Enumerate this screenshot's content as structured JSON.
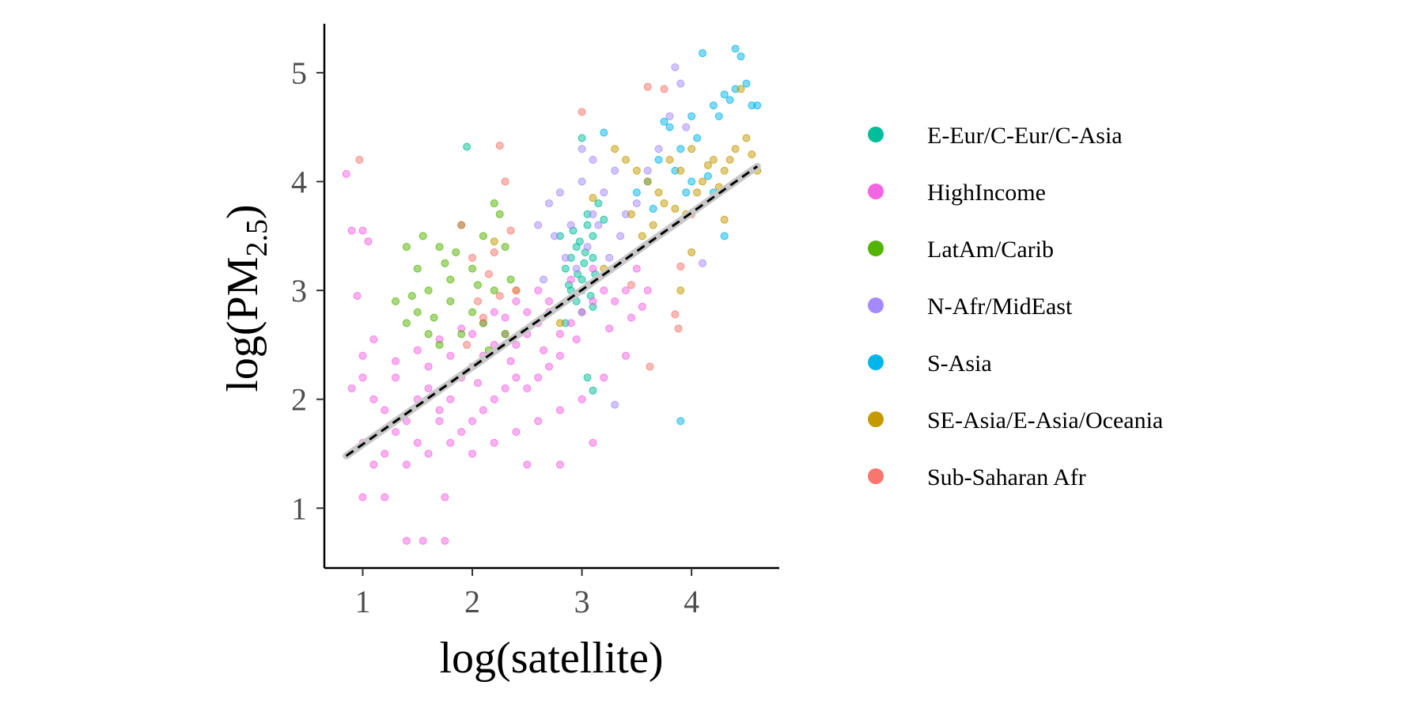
{
  "chart_data": {
    "type": "scatter",
    "title": "",
    "xlabel": "log(satellite)",
    "ylabel_parts": {
      "prefix": "log(",
      "main": "PM",
      "sub": "2.5",
      "suffix": ")"
    },
    "xlim": [
      0.65,
      4.8
    ],
    "ylim": [
      0.45,
      5.45
    ],
    "x_ticks": [
      1,
      2,
      3,
      4
    ],
    "y_ticks": [
      1,
      2,
      3,
      4,
      5
    ],
    "grid": false,
    "legend_position": "right",
    "fit_line": {
      "style": "dashed",
      "color": "#000000",
      "x": [
        0.85,
        4.6
      ],
      "y": [
        1.48,
        4.14
      ]
    },
    "series": [
      {
        "name": "E-Eur/C-Eur/C-Asia",
        "color": "#00BE9A",
        "points": [
          [
            2.85,
            3.2
          ],
          [
            2.9,
            3.0
          ],
          [
            2.95,
            3.4
          ],
          [
            3.0,
            3.1
          ],
          [
            3.05,
            3.6
          ],
          [
            3.1,
            3.3
          ],
          [
            3.0,
            2.8
          ],
          [
            2.95,
            2.9
          ],
          [
            3.1,
            3.5
          ],
          [
            3.05,
            3.7
          ],
          [
            2.88,
            3.05
          ],
          [
            3.02,
            3.25
          ],
          [
            3.08,
            2.95
          ],
          [
            2.92,
            3.55
          ],
          [
            3.12,
            3.15
          ],
          [
            2.98,
            3.45
          ],
          [
            3.15,
            3.8
          ],
          [
            2.85,
            2.7
          ],
          [
            3.0,
            3.0
          ],
          [
            3.03,
            3.35
          ],
          [
            2.96,
            3.15
          ],
          [
            3.06,
            3.05
          ],
          [
            2.9,
            3.3
          ],
          [
            3.1,
            2.85
          ],
          [
            1.95,
            4.32
          ],
          [
            3.0,
            4.4
          ],
          [
            3.05,
            2.2
          ],
          [
            3.1,
            2.08
          ],
          [
            3.2,
            3.65
          ],
          [
            2.8,
            3.5
          ]
        ]
      },
      {
        "name": "HighIncome",
        "color": "#F564E3",
        "points": [
          [
            0.9,
            2.1
          ],
          [
            1.0,
            2.2
          ],
          [
            1.1,
            2.0
          ],
          [
            1.2,
            1.9
          ],
          [
            1.3,
            2.2
          ],
          [
            1.4,
            1.8
          ],
          [
            1.5,
            2.0
          ],
          [
            1.6,
            2.1
          ],
          [
            1.7,
            1.9
          ],
          [
            1.8,
            2.0
          ],
          [
            1.9,
            2.2
          ],
          [
            2.0,
            2.3
          ],
          [
            2.1,
            2.4
          ],
          [
            2.2,
            2.5
          ],
          [
            2.3,
            2.6
          ],
          [
            2.4,
            2.5
          ],
          [
            2.5,
            2.6
          ],
          [
            2.6,
            2.7
          ],
          [
            2.7,
            2.8
          ],
          [
            2.8,
            2.6
          ],
          [
            2.9,
            2.7
          ],
          [
            3.0,
            2.8
          ],
          [
            3.1,
            2.9
          ],
          [
            3.2,
            3.0
          ],
          [
            3.3,
            2.9
          ],
          [
            3.4,
            3.0
          ],
          [
            3.5,
            3.2
          ],
          [
            3.6,
            3.0
          ],
          [
            1.0,
            1.6
          ],
          [
            1.1,
            1.4
          ],
          [
            1.2,
            1.5
          ],
          [
            1.3,
            1.7
          ],
          [
            1.4,
            1.4
          ],
          [
            1.5,
            1.6
          ],
          [
            1.6,
            1.5
          ],
          [
            1.7,
            1.8
          ],
          [
            1.8,
            1.6
          ],
          [
            1.9,
            1.7
          ],
          [
            2.0,
            1.8
          ],
          [
            2.1,
            1.9
          ],
          [
            2.2,
            2.0
          ],
          [
            2.3,
            2.1
          ],
          [
            2.4,
            2.2
          ],
          [
            2.5,
            2.1
          ],
          [
            2.6,
            2.2
          ],
          [
            2.7,
            2.3
          ],
          [
            2.8,
            2.4
          ],
          [
            2.0,
            2.6
          ],
          [
            2.2,
            2.8
          ],
          [
            2.4,
            2.9
          ],
          [
            2.6,
            3.0
          ],
          [
            1.0,
            1.1
          ],
          [
            1.2,
            1.1
          ],
          [
            1.4,
            0.7
          ],
          [
            1.55,
            0.7
          ],
          [
            1.75,
            0.7
          ],
          [
            1.75,
            1.1
          ],
          [
            0.9,
            3.55
          ],
          [
            1.0,
            3.55
          ],
          [
            0.85,
            4.07
          ],
          [
            1.05,
            3.45
          ],
          [
            0.95,
            2.95
          ],
          [
            1.0,
            2.4
          ],
          [
            1.1,
            2.55
          ],
          [
            1.3,
            2.35
          ],
          [
            1.5,
            2.45
          ],
          [
            1.7,
            2.55
          ],
          [
            1.9,
            2.65
          ],
          [
            2.1,
            2.7
          ],
          [
            2.3,
            2.75
          ],
          [
            2.5,
            2.8
          ],
          [
            2.7,
            2.9
          ],
          [
            2.9,
            3.1
          ],
          [
            3.1,
            3.2
          ],
          [
            2.0,
            1.5
          ],
          [
            2.2,
            1.6
          ],
          [
            2.4,
            1.7
          ],
          [
            2.6,
            1.8
          ],
          [
            2.8,
            1.9
          ],
          [
            3.0,
            2.0
          ],
          [
            3.2,
            2.2
          ],
          [
            3.4,
            2.4
          ],
          [
            2.5,
            1.4
          ],
          [
            2.8,
            1.4
          ],
          [
            3.1,
            1.6
          ],
          [
            1.6,
            2.3
          ],
          [
            1.8,
            2.4
          ],
          [
            2.05,
            2.15
          ],
          [
            2.35,
            2.35
          ],
          [
            2.65,
            2.45
          ],
          [
            2.95,
            2.55
          ],
          [
            3.25,
            2.65
          ],
          [
            3.45,
            2.75
          ],
          [
            3.55,
            2.85
          ]
        ]
      },
      {
        "name": "LatAm/Carib",
        "color": "#53B400",
        "points": [
          [
            1.4,
            3.4
          ],
          [
            1.5,
            3.2
          ],
          [
            1.6,
            3.0
          ],
          [
            1.7,
            3.4
          ],
          [
            1.8,
            3.1
          ],
          [
            1.9,
            3.6
          ],
          [
            2.0,
            3.2
          ],
          [
            2.1,
            3.5
          ],
          [
            2.2,
            3.8
          ],
          [
            2.3,
            3.4
          ],
          [
            1.3,
            2.9
          ],
          [
            1.4,
            2.7
          ],
          [
            1.5,
            2.8
          ],
          [
            1.6,
            2.6
          ],
          [
            1.7,
            2.5
          ],
          [
            1.8,
            2.9
          ],
          [
            1.9,
            2.6
          ],
          [
            2.0,
            2.8
          ],
          [
            2.1,
            2.7
          ],
          [
            2.2,
            3.0
          ],
          [
            2.25,
            3.7
          ],
          [
            1.55,
            3.5
          ],
          [
            1.45,
            2.95
          ],
          [
            1.85,
            3.35
          ],
          [
            2.05,
            3.05
          ],
          [
            2.15,
            2.45
          ],
          [
            2.3,
            2.6
          ],
          [
            1.65,
            2.75
          ],
          [
            1.75,
            3.25
          ],
          [
            2.35,
            3.1
          ]
        ]
      },
      {
        "name": "N-Afr/MidEast",
        "color": "#A58AFF",
        "points": [
          [
            2.7,
            3.8
          ],
          [
            2.8,
            3.9
          ],
          [
            2.9,
            3.6
          ],
          [
            3.0,
            4.0
          ],
          [
            3.1,
            3.7
          ],
          [
            3.2,
            3.9
          ],
          [
            3.3,
            4.1
          ],
          [
            2.75,
            3.5
          ],
          [
            2.85,
            3.3
          ],
          [
            2.95,
            3.2
          ],
          [
            3.05,
            3.4
          ],
          [
            3.15,
            3.6
          ],
          [
            3.25,
            3.3
          ],
          [
            3.35,
            3.5
          ],
          [
            3.5,
            3.8
          ],
          [
            3.6,
            4.1
          ],
          [
            3.7,
            4.3
          ],
          [
            3.8,
            4.6
          ],
          [
            3.9,
            4.9
          ],
          [
            3.85,
            5.05
          ],
          [
            3.0,
            4.3
          ],
          [
            3.1,
            4.2
          ],
          [
            2.6,
            3.6
          ],
          [
            3.4,
            3.7
          ],
          [
            3.3,
            1.95
          ],
          [
            4.1,
            3.25
          ],
          [
            3.95,
            4.5
          ],
          [
            2.65,
            3.1
          ]
        ]
      },
      {
        "name": "S-Asia",
        "color": "#00B6EB",
        "points": [
          [
            3.6,
            4.0
          ],
          [
            3.7,
            4.2
          ],
          [
            3.8,
            4.5
          ],
          [
            3.9,
            4.3
          ],
          [
            4.0,
            4.6
          ],
          [
            4.1,
            5.18
          ],
          [
            4.2,
            4.7
          ],
          [
            4.3,
            4.8
          ],
          [
            4.4,
            5.22
          ],
          [
            4.5,
            4.9
          ],
          [
            3.75,
            4.55
          ],
          [
            3.85,
            4.1
          ],
          [
            3.95,
            3.9
          ],
          [
            4.05,
            4.4
          ],
          [
            4.15,
            4.05
          ],
          [
            4.25,
            4.6
          ],
          [
            4.35,
            4.75
          ],
          [
            4.45,
            5.15
          ],
          [
            4.55,
            4.7
          ],
          [
            3.9,
            1.8
          ],
          [
            4.3,
            3.5
          ],
          [
            3.65,
            3.75
          ],
          [
            4.0,
            4.0
          ],
          [
            4.2,
            3.9
          ],
          [
            4.6,
            4.7
          ],
          [
            3.2,
            4.45
          ],
          [
            3.5,
            3.9
          ],
          [
            4.4,
            4.85
          ]
        ]
      },
      {
        "name": "SE-Asia/E-Asia/Oceania",
        "color": "#C49A00",
        "points": [
          [
            3.3,
            4.3
          ],
          [
            3.4,
            4.2
          ],
          [
            3.5,
            4.1
          ],
          [
            3.6,
            4.0
          ],
          [
            3.7,
            3.9
          ],
          [
            3.8,
            4.2
          ],
          [
            3.9,
            4.1
          ],
          [
            4.0,
            4.3
          ],
          [
            4.1,
            4.0
          ],
          [
            4.2,
            4.2
          ],
          [
            4.3,
            4.1
          ],
          [
            4.4,
            4.3
          ],
          [
            4.5,
            4.4
          ],
          [
            4.6,
            4.1
          ],
          [
            4.45,
            4.85
          ],
          [
            3.45,
            3.7
          ],
          [
            3.55,
            3.5
          ],
          [
            3.65,
            3.6
          ],
          [
            3.75,
            3.8
          ],
          [
            3.85,
            3.75
          ],
          [
            3.95,
            3.7
          ],
          [
            4.05,
            3.9
          ],
          [
            4.15,
            4.15
          ],
          [
            4.25,
            3.95
          ],
          [
            4.35,
            4.2
          ],
          [
            4.55,
            4.25
          ],
          [
            2.2,
            3.45
          ],
          [
            2.4,
            3.0
          ],
          [
            2.8,
            2.7
          ],
          [
            3.2,
            3.2
          ],
          [
            3.9,
            3.0
          ],
          [
            4.0,
            3.35
          ],
          [
            4.3,
            3.65
          ],
          [
            3.1,
            3.85
          ]
        ]
      },
      {
        "name": "Sub-Saharan Afr",
        "color": "#F8766D",
        "points": [
          [
            0.97,
            4.2
          ],
          [
            2.25,
            4.33
          ],
          [
            2.3,
            4.0
          ],
          [
            2.35,
            3.55
          ],
          [
            2.2,
            3.35
          ],
          [
            2.4,
            3.0
          ],
          [
            2.1,
            2.75
          ],
          [
            2.25,
            2.95
          ],
          [
            1.9,
            3.6
          ],
          [
            2.0,
            3.3
          ],
          [
            3.0,
            4.64
          ],
          [
            3.75,
            4.85
          ],
          [
            3.6,
            4.87
          ],
          [
            3.85,
            2.78
          ],
          [
            3.88,
            2.65
          ],
          [
            3.62,
            2.3
          ],
          [
            3.9,
            3.22
          ],
          [
            3.45,
            3.05
          ],
          [
            4.0,
            3.7
          ],
          [
            2.15,
            3.15
          ],
          [
            2.05,
            2.9
          ],
          [
            1.95,
            2.5
          ]
        ]
      }
    ]
  }
}
